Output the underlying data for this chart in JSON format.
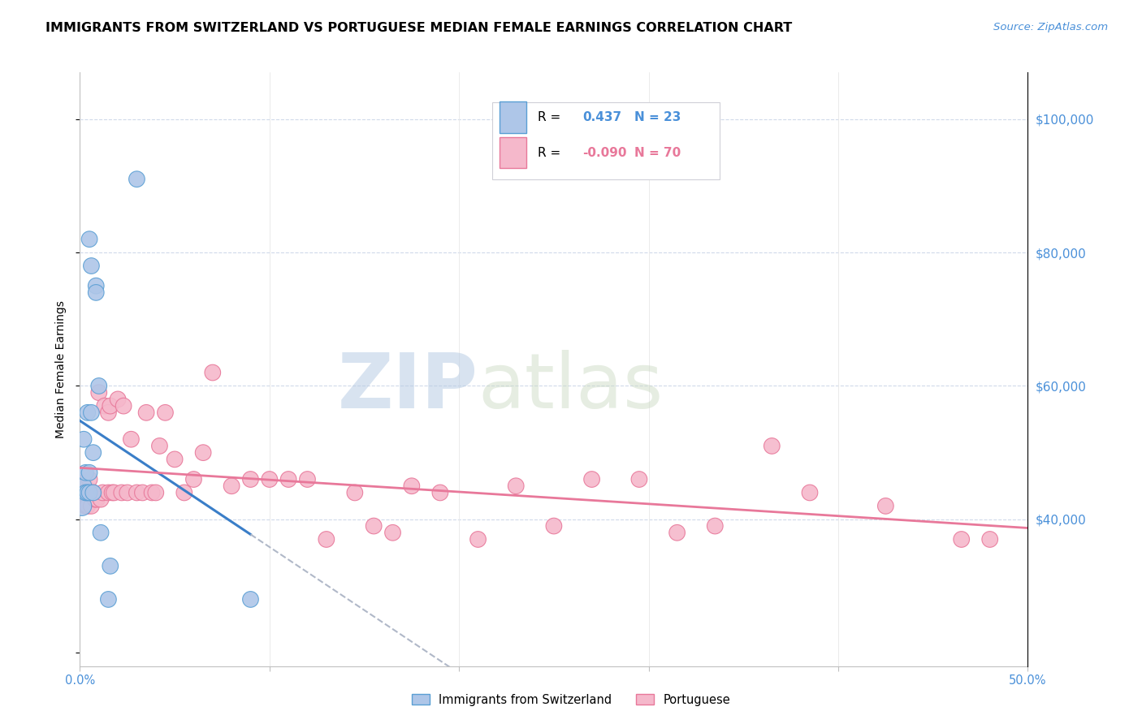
{
  "title": "IMMIGRANTS FROM SWITZERLAND VS PORTUGUESE MEDIAN FEMALE EARNINGS CORRELATION CHART",
  "source": "Source: ZipAtlas.com",
  "ylabel": "Median Female Earnings",
  "x_min": 0.0,
  "x_max": 0.5,
  "y_min": 18000,
  "y_max": 107000,
  "swiss_color": "#aec6e8",
  "swiss_edge_color": "#5a9fd4",
  "port_color": "#f5b8cb",
  "port_edge_color": "#e8789a",
  "trend_blue": "#3a7ec8",
  "trend_pink": "#e8789a",
  "grid_color": "#d0daea",
  "vgrid_color": "#e8e8e8",
  "right_label_color": "#4a90d9",
  "swiss_points_x": [
    0.001,
    0.002,
    0.002,
    0.003,
    0.003,
    0.004,
    0.004,
    0.005,
    0.005,
    0.005,
    0.006,
    0.006,
    0.007,
    0.007,
    0.0085,
    0.0085,
    0.01,
    0.011,
    0.015,
    0.016,
    0.03,
    0.09
  ],
  "swiss_points_y": [
    42000,
    45000,
    52000,
    44000,
    47000,
    44000,
    56000,
    44000,
    47000,
    82000,
    56000,
    78000,
    44000,
    50000,
    75000,
    74000,
    60000,
    38000,
    28000,
    33000,
    91000,
    28000
  ],
  "swiss_sizes": [
    300,
    200,
    200,
    200,
    200,
    200,
    200,
    200,
    200,
    200,
    200,
    200,
    200,
    200,
    200,
    200,
    200,
    200,
    200,
    200,
    200,
    200
  ],
  "port_points_x": [
    0.001,
    0.002,
    0.003,
    0.003,
    0.004,
    0.004,
    0.005,
    0.006,
    0.007,
    0.008,
    0.009,
    0.01,
    0.011,
    0.012,
    0.013,
    0.015,
    0.015,
    0.016,
    0.017,
    0.018,
    0.02,
    0.022,
    0.023,
    0.025,
    0.027,
    0.03,
    0.033,
    0.035,
    0.038,
    0.04,
    0.042,
    0.045,
    0.05,
    0.055,
    0.06,
    0.065,
    0.07,
    0.08,
    0.09,
    0.1,
    0.11,
    0.12,
    0.13,
    0.145,
    0.155,
    0.165,
    0.175,
    0.19,
    0.21,
    0.23,
    0.25,
    0.27,
    0.295,
    0.315,
    0.335,
    0.365,
    0.385,
    0.425,
    0.465,
    0.48
  ],
  "port_points_y": [
    45000,
    44000,
    44000,
    42000,
    44000,
    42000,
    46000,
    42000,
    44000,
    43000,
    43000,
    59000,
    43000,
    44000,
    57000,
    44000,
    56000,
    57000,
    44000,
    44000,
    58000,
    44000,
    57000,
    44000,
    52000,
    44000,
    44000,
    56000,
    44000,
    44000,
    51000,
    56000,
    49000,
    44000,
    46000,
    50000,
    62000,
    45000,
    46000,
    46000,
    46000,
    46000,
    37000,
    44000,
    39000,
    38000,
    45000,
    44000,
    37000,
    45000,
    39000,
    46000,
    46000,
    38000,
    39000,
    51000,
    44000,
    42000,
    37000,
    37000
  ],
  "port_sizes": [
    350,
    200,
    200,
    200,
    200,
    200,
    200,
    200,
    200,
    200,
    200,
    200,
    200,
    200,
    200,
    200,
    200,
    200,
    200,
    200,
    200,
    200,
    200,
    200,
    200,
    200,
    200,
    200,
    200,
    200,
    200,
    200,
    200,
    200,
    200,
    200,
    200,
    200,
    200,
    200,
    200,
    200,
    200,
    200,
    200,
    200,
    200,
    200,
    200,
    200,
    200,
    200,
    200,
    200,
    200,
    200,
    200,
    200,
    200,
    200
  ],
  "watermark_zip": "ZIP",
  "watermark_atlas": "atlas",
  "watermark_color": "#c8d8ee",
  "title_fontsize": 11.5,
  "source_fontsize": 9.5
}
